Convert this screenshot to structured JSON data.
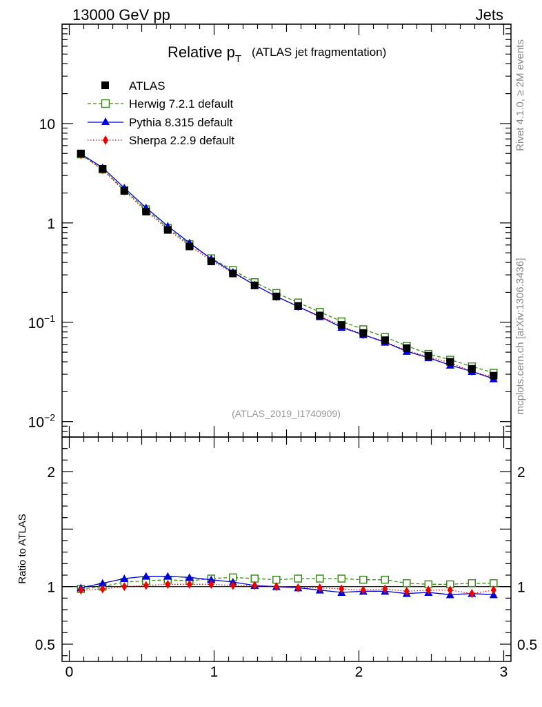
{
  "header": {
    "left": "13000 GeV pp",
    "right": "Jets"
  },
  "side_labels": {
    "rivet": "Rivet 4.1.0, ≥ 2M events",
    "mcplots": "mcplots.cern.ch [arXiv:1306.3436]"
  },
  "chart_data": [
    {
      "type": "line",
      "title_main": "Relative p",
      "title_sub": "T",
      "title_extra": "(ATLAS jet fragmentation)",
      "watermark": "(ATLAS_2019_I1740909)",
      "xlabel": "",
      "ylabel": "",
      "yscale": "log",
      "xlim": [
        -0.05,
        3.05
      ],
      "ylim": [
        0.007,
        100
      ],
      "y_ticks": [
        {
          "value": 10,
          "label": "10"
        },
        {
          "value": 1,
          "label": "1"
        },
        {
          "value": 0.1,
          "label": "10",
          "exp": "−1"
        },
        {
          "value": 0.01,
          "label": "10",
          "exp": "−2"
        }
      ],
      "x": [
        0.08,
        0.23,
        0.38,
        0.53,
        0.68,
        0.83,
        0.98,
        1.13,
        1.28,
        1.43,
        1.58,
        1.73,
        1.88,
        2.03,
        2.18,
        2.33,
        2.48,
        2.63,
        2.78,
        2.93
      ],
      "series": [
        {
          "name": "ATLAS",
          "color": "#000000",
          "marker": "square-filled",
          "line": "none",
          "values": [
            5.0,
            3.5,
            2.1,
            1.3,
            0.85,
            0.58,
            0.41,
            0.31,
            0.235,
            0.182,
            0.146,
            0.117,
            0.094,
            0.078,
            0.066,
            0.055,
            0.046,
            0.04,
            0.034,
            0.029
          ]
        },
        {
          "name": "Herwig 7.2.1 default",
          "color": "#3a8a18",
          "marker": "square-open",
          "line": "dashed",
          "values": [
            4.9,
            3.45,
            2.15,
            1.37,
            0.89,
            0.61,
            0.44,
            0.335,
            0.253,
            0.197,
            0.158,
            0.127,
            0.102,
            0.085,
            0.071,
            0.058,
            0.048,
            0.042,
            0.036,
            0.031
          ]
        },
        {
          "name": "Pythia 8.315 default",
          "color": "#0000dd",
          "marker": "triangle-filled",
          "line": "solid",
          "values": [
            4.95,
            3.6,
            2.25,
            1.42,
            0.93,
            0.63,
            0.435,
            0.32,
            0.237,
            0.182,
            0.144,
            0.114,
            0.089,
            0.075,
            0.063,
            0.051,
            0.044,
            0.037,
            0.032,
            0.027
          ]
        },
        {
          "name": "Sherpa 2.2.9 default",
          "color": "#ee0000",
          "marker": "diamond-filled",
          "line": "dotted",
          "values": [
            4.85,
            3.43,
            2.1,
            1.32,
            0.86,
            0.59,
            0.418,
            0.313,
            0.237,
            0.181,
            0.144,
            0.116,
            0.092,
            0.075,
            0.064,
            0.052,
            0.045,
            0.039,
            0.032,
            0.028
          ]
        }
      ]
    },
    {
      "type": "line",
      "ylabel": "Ratio to ATLAS",
      "yscale": "linear",
      "xlim": [
        -0.05,
        3.05
      ],
      "ylim": [
        0.35,
        2.3
      ],
      "y_ticks": [
        {
          "value": 2,
          "label": "2"
        },
        {
          "value": 1,
          "label": "1"
        },
        {
          "value": 0.5,
          "label": "0.5"
        }
      ],
      "x_ticks": [
        {
          "value": 0,
          "label": "0"
        },
        {
          "value": 1,
          "label": "1"
        },
        {
          "value": 2,
          "label": "2"
        },
        {
          "value": 3,
          "label": "3"
        }
      ],
      "reference": 1,
      "series": [
        {
          "name": "Herwig 7.2.1 default",
          "color": "#3a8a18",
          "marker": "square-open",
          "line": "dashed",
          "values": [
            0.98,
            1.0,
            1.04,
            1.05,
            1.06,
            1.05,
            1.07,
            1.08,
            1.07,
            1.06,
            1.07,
            1.07,
            1.07,
            1.06,
            1.06,
            1.03,
            1.02,
            1.02,
            1.03,
            1.03
          ]
        },
        {
          "name": "Pythia 8.315 default",
          "color": "#0000dd",
          "marker": "triangle-filled",
          "line": "solid",
          "values": [
            0.99,
            1.03,
            1.07,
            1.09,
            1.09,
            1.08,
            1.06,
            1.04,
            1.01,
            1.0,
            0.99,
            0.97,
            0.95,
            0.96,
            0.96,
            0.94,
            0.95,
            0.93,
            0.94,
            0.93
          ]
        },
        {
          "name": "Sherpa 2.2.9 default",
          "color": "#ee0000",
          "marker": "diamond-filled",
          "line": "dotted",
          "values": [
            0.97,
            0.98,
            1.0,
            1.01,
            1.02,
            1.02,
            1.02,
            1.01,
            1.01,
            1.0,
            0.99,
            0.99,
            0.98,
            0.97,
            0.98,
            0.96,
            0.97,
            0.97,
            0.94,
            0.97
          ]
        }
      ]
    }
  ]
}
